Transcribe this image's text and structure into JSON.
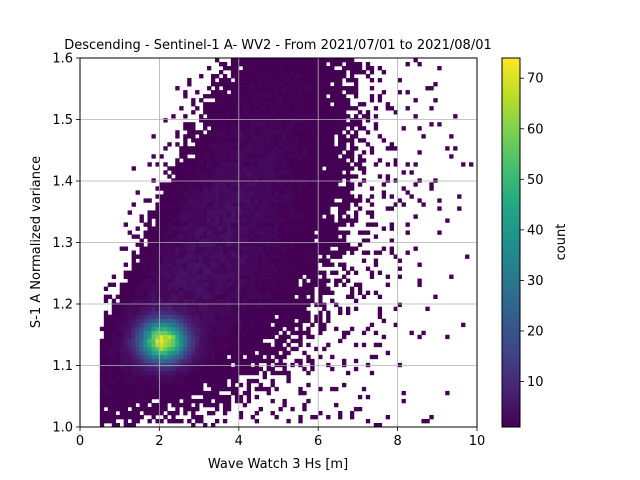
{
  "chart_data": {
    "type": "heatmap",
    "title": "Descending - Sentinel-1 A- WV2 - From 2021/07/01 to 2021/08/01",
    "xlabel": "Wave Watch 3 Hs [m]",
    "ylabel": "S-1 A Normalized variance",
    "xlim": [
      0,
      10
    ],
    "ylim": [
      1.0,
      1.6
    ],
    "x_ticks": [
      "0",
      "2",
      "4",
      "6",
      "8",
      "10"
    ],
    "y_ticks": [
      "1.0",
      "1.1",
      "1.2",
      "1.3",
      "1.4",
      "1.5",
      "1.6"
    ],
    "grid": true,
    "colormap": "viridis",
    "colorbar": {
      "label": "count",
      "range": [
        1,
        74
      ],
      "ticks": [
        "10",
        "20",
        "30",
        "40",
        "50",
        "60",
        "70"
      ]
    },
    "distribution_estimate": {
      "peak_x": 2.1,
      "peak_y": 1.14,
      "peak_count": 74,
      "x_extent": [
        0.5,
        9.9
      ],
      "y_extent": [
        1.0,
        1.59
      ],
      "trend": "variance increases with Hs; dense core along 1.5-4 m, 1.08-1.3"
    }
  }
}
